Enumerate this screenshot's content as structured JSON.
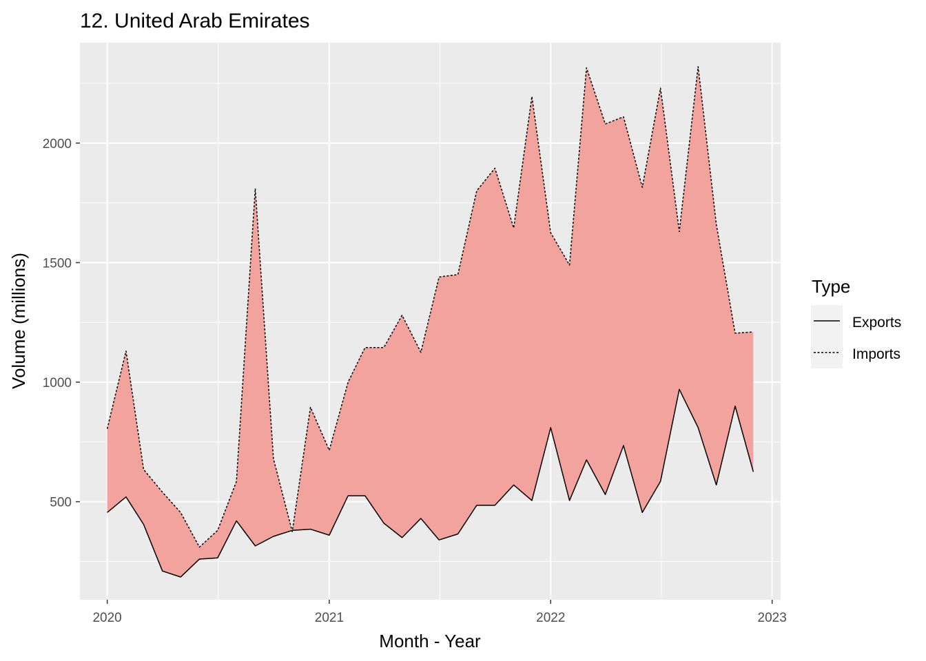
{
  "chart_data": {
    "type": "area",
    "title": "12. United Arab Emirates",
    "xlabel": "Month - Year",
    "ylabel": "Volume (millions)",
    "x_ticks": [
      "2020",
      "2021",
      "2022",
      "2023"
    ],
    "y_ticks": [
      500,
      1000,
      1500,
      2000
    ],
    "xlim": [
      "2019-11-17",
      "2023-01-15"
    ],
    "ylim": [
      90,
      2420
    ],
    "grid": true,
    "fill_color": "#f2a39e",
    "panel_color": "#ebebeb",
    "legend": {
      "title": "Type",
      "position": "right",
      "entries": [
        {
          "label": "Exports",
          "linetype": "solid"
        },
        {
          "label": "Imports",
          "linetype": "dotted"
        }
      ]
    },
    "x": [
      "2020-01",
      "2020-02",
      "2020-03",
      "2020-04",
      "2020-05",
      "2020-06",
      "2020-07",
      "2020-08",
      "2020-09",
      "2020-10",
      "2020-11",
      "2020-12",
      "2021-01",
      "2021-02",
      "2021-03",
      "2021-04",
      "2021-05",
      "2021-06",
      "2021-07",
      "2021-08",
      "2021-09",
      "2021-10",
      "2021-11",
      "2021-12",
      "2022-01",
      "2022-02",
      "2022-03",
      "2022-04",
      "2022-05",
      "2022-06",
      "2022-07",
      "2022-08",
      "2022-09",
      "2022-10",
      "2022-11",
      "2022-12"
    ],
    "series": [
      {
        "name": "Exports",
        "values": [
          455,
          520,
          405,
          210,
          185,
          260,
          265,
          420,
          315,
          355,
          380,
          385,
          360,
          525,
          525,
          410,
          350,
          430,
          340,
          365,
          485,
          485,
          570,
          505,
          810,
          505,
          675,
          530,
          735,
          455,
          585,
          970,
          810,
          570,
          900,
          625
        ]
      },
      {
        "name": "Imports",
        "values": [
          805,
          1130,
          635,
          540,
          455,
          310,
          380,
          585,
          1810,
          680,
          375,
          895,
          715,
          1000,
          1145,
          1145,
          1280,
          1125,
          1440,
          1450,
          1800,
          1895,
          1645,
          2195,
          1625,
          1490,
          2315,
          2080,
          2110,
          1815,
          2230,
          1630,
          2320,
          1660,
          1205,
          1210
        ]
      }
    ]
  }
}
